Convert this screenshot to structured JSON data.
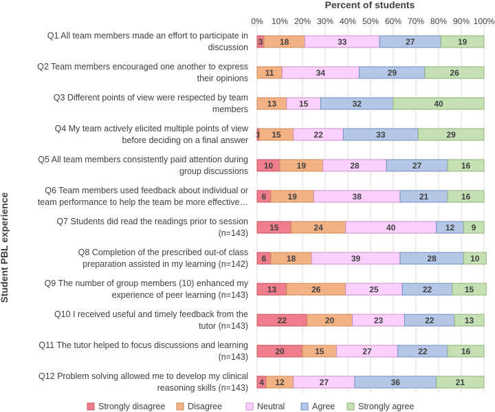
{
  "chart_data": {
    "type": "bar",
    "orientation": "horizontal",
    "stacked": "percent",
    "title": "Percent of students",
    "xlabel": "Percent of students",
    "ylabel": "Student PBL experience",
    "xlim": [
      0,
      100
    ],
    "xticks": [
      "0%",
      "10%",
      "20%",
      "30%",
      "40%",
      "50%",
      "60%",
      "70%",
      "80%",
      "90%",
      "100%"
    ],
    "grid": true,
    "legend_position": "bottom",
    "categories": [
      [
        "Q1 All team members made an effort to participate in",
        "discussion"
      ],
      [
        "Q2 Team members encouraged one another to express",
        "their opinions"
      ],
      [
        "Q3 Different points of view were respected by team",
        "members"
      ],
      [
        "Q4 My team actively elicited multiple points of view",
        "before deciding on a final answer"
      ],
      [
        "Q5 All team members consistently paid attention during",
        "group discussions"
      ],
      [
        "Q6 Team members used feedback about individual or",
        "team performance to help the team be more effective…"
      ],
      [
        "Q7 Students did read the readings prior to session",
        "(n=143)"
      ],
      [
        "Q8 Completion of the prescribed out-of class",
        "preparation assisted in my learning (n=142)"
      ],
      [
        "Q9 The number of group members (10) enhanced my",
        "experience of peer learning (n=143)"
      ],
      [
        "Q10 I received useful and timely feedback from the",
        "tutor (n=143)"
      ],
      [
        "Q11 The tutor helped to focus discussions and learning",
        "(n=143)"
      ],
      [
        "Q12 Problem solving allowed me to develop my clinical",
        "reasoning skills (n=143)"
      ]
    ],
    "series": [
      {
        "name": "Strongly disagree",
        "color": "#ef7d8c",
        "border": "#c95060",
        "values": [
          3,
          0,
          0,
          1,
          10,
          6,
          15,
          6,
          13,
          22,
          20,
          4
        ]
      },
      {
        "name": "Disagree",
        "color": "#f4b183",
        "border": "#c98a5a",
        "values": [
          18,
          11,
          13,
          15,
          19,
          19,
          24,
          18,
          26,
          20,
          15,
          12
        ]
      },
      {
        "name": "Neutral",
        "color": "#fbd0fc",
        "border": "#c992c9",
        "values": [
          33,
          34,
          15,
          22,
          28,
          38,
          40,
          39,
          25,
          23,
          27,
          27
        ]
      },
      {
        "name": "Agree",
        "color": "#b4c7e7",
        "border": "#6f8fc2",
        "values": [
          27,
          29,
          32,
          33,
          27,
          21,
          12,
          28,
          22,
          22,
          22,
          36
        ]
      },
      {
        "name": "Strongly agree",
        "color": "#c5e0b4",
        "border": "#8db277",
        "values": [
          19,
          26,
          40,
          29,
          16,
          16,
          9,
          10,
          15,
          13,
          16,
          21
        ]
      }
    ]
  }
}
